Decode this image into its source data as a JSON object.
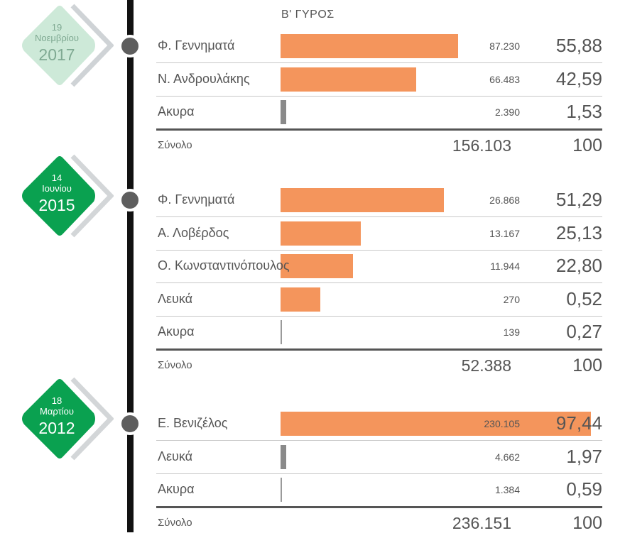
{
  "header": "Β' ΓΥΡΟΣ",
  "colors": {
    "bar": "#f4955c",
    "grey_bar": "#8a8a8a",
    "badge_green": "#0aa150",
    "badge_light": "#cde9d8",
    "line": "#111111"
  },
  "chart_data": {
    "type": "bar",
    "title": "Β' ΓΥΡΟΣ",
    "groups": [
      {
        "date": {
          "day": "19",
          "month": "Νοεμβρίου",
          "year": "2017"
        },
        "rows": [
          {
            "name": "Φ. Γεννηματά",
            "votes": "87.230",
            "pct": "55,88",
            "value": 55.88,
            "color": "orange"
          },
          {
            "name": "Ν. Ανδρουλάκης",
            "votes": "66.483",
            "pct": "42,59",
            "value": 42.59,
            "color": "orange"
          },
          {
            "name": "Ακυρα",
            "votes": "2.390",
            "pct": "1,53",
            "value": 1.53,
            "color": "grey"
          }
        ],
        "total": {
          "label": "Σύνολο",
          "votes": "156.103",
          "pct": "100"
        }
      },
      {
        "date": {
          "day": "14",
          "month": "Ιουνίου",
          "year": "2015"
        },
        "rows": [
          {
            "name": "Φ. Γεννηματά",
            "votes": "26.868",
            "pct": "51,29",
            "value": 51.29,
            "color": "orange"
          },
          {
            "name": "Α. Λοβέρδος",
            "votes": "13.167",
            "pct": "25,13",
            "value": 25.13,
            "color": "orange"
          },
          {
            "name": "Ο. Κωνσταντινόπουλος",
            "votes": "11.944",
            "pct": "22,80",
            "value": 22.8,
            "color": "orange"
          },
          {
            "name": "Λευκά",
            "votes": "270",
            "pct": "0,52",
            "value": 0.52,
            "color": "orange"
          },
          {
            "name": "Ακυρα",
            "votes": "139",
            "pct": "0,27",
            "value": 0.27,
            "color": "grey"
          }
        ],
        "total": {
          "label": "Σύνολο",
          "votes": "52.388",
          "pct": "100"
        }
      },
      {
        "date": {
          "day": "18",
          "month": "Μαρτίου",
          "year": "2012"
        },
        "rows": [
          {
            "name": "Ε. Βενιζέλος",
            "votes": "230.105",
            "pct": "97,44",
            "value": 97.44,
            "color": "orange"
          },
          {
            "name": "Λευκά",
            "votes": "4.662",
            "pct": "1,97",
            "value": 1.97,
            "color": "grey"
          },
          {
            "name": "Ακυρα",
            "votes": "1.384",
            "pct": "0,59",
            "value": 0.59,
            "color": "grey"
          }
        ],
        "total": {
          "label": "Σύνολο",
          "votes": "236.151",
          "pct": "100"
        }
      }
    ]
  }
}
